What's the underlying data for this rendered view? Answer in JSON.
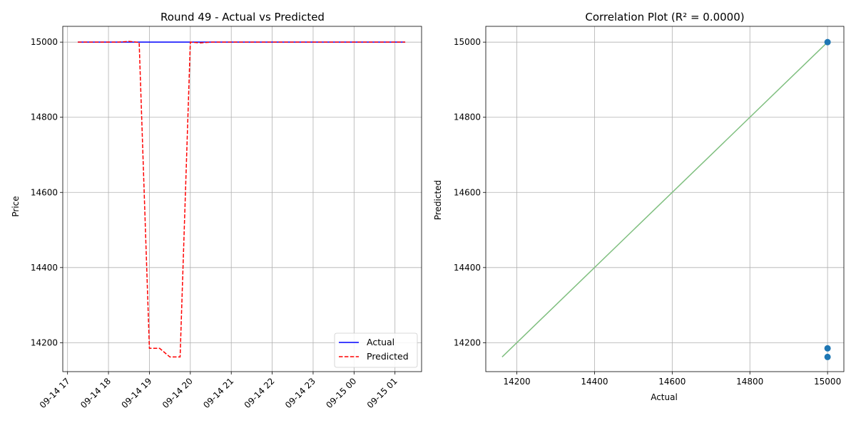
{
  "chart_data": [
    {
      "type": "line",
      "title": "Round 49 - Actual vs Predicted",
      "xlabel": "",
      "ylabel": "Price",
      "x_ticks": [
        "09-14 17",
        "09-14 18",
        "09-14 19",
        "09-14 20",
        "09-14 21",
        "09-14 22",
        "09-14 23",
        "09-15 00",
        "09-15 01"
      ],
      "y_ticks": [
        14200,
        14400,
        14600,
        14800,
        15000
      ],
      "xlim": [
        "2023-09-14 16:53",
        "2023-09-15 01:39"
      ],
      "ylim": [
        14123,
        15042
      ],
      "grid": true,
      "legend_position": "lower right",
      "series": [
        {
          "name": "Actual",
          "color": "#0000ff",
          "style": "solid",
          "points": [
            [
              "2023-09-14 17:15",
              15000
            ],
            [
              "2023-09-15 01:15",
              15000
            ]
          ]
        },
        {
          "name": "Predicted",
          "color": "#ff0000",
          "style": "dashed",
          "points": [
            [
              "2023-09-14 17:15",
              15000
            ],
            [
              "2023-09-14 18:15",
              15000
            ],
            [
              "2023-09-14 18:30",
              15002
            ],
            [
              "2023-09-14 18:45",
              14999
            ],
            [
              "2023-09-14 19:00",
              14185
            ],
            [
              "2023-09-14 19:15",
              14185
            ],
            [
              "2023-09-14 19:30",
              14162
            ],
            [
              "2023-09-14 19:45",
              14162
            ],
            [
              "2023-09-14 20:00",
              15000
            ],
            [
              "2023-09-14 20:15",
              14998
            ],
            [
              "2023-09-14 20:30",
              15000
            ],
            [
              "2023-09-15 01:15",
              15000
            ]
          ]
        }
      ]
    },
    {
      "type": "scatter",
      "title": "Correlation Plot (R² = 0.0000)",
      "xlabel": "Actual",
      "ylabel": "Predicted",
      "x_ticks": [
        14200,
        14400,
        14600,
        14800,
        15000
      ],
      "y_ticks": [
        14200,
        14400,
        14600,
        14800,
        15000
      ],
      "xlim": [
        14120,
        15042
      ],
      "ylim": [
        14123,
        15042
      ],
      "grid": true,
      "points_color": "#1f77b4",
      "line_color": "#7fbf7f",
      "points": [
        [
          15000,
          15000
        ],
        [
          15000,
          14185
        ],
        [
          15000,
          14162
        ]
      ],
      "reference_line": [
        [
          14162,
          14162
        ],
        [
          15000,
          15000
        ]
      ]
    }
  ]
}
